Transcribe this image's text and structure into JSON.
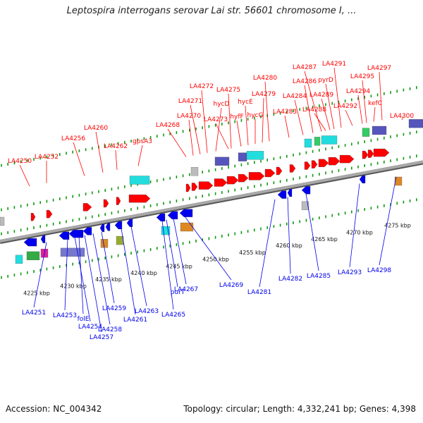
{
  "header": {
    "title": "Leptospira interrogans serovar Lai str. 56601 chromosome I, ..."
  },
  "footer": {
    "accession": "Accession: NC_004342",
    "summary": "Topology: circular; Length: 4,332,241 bp; Genes: 4,398"
  },
  "colors": {
    "forward": "#ff0000",
    "reverse": "#0000ee",
    "backbone": "#888888",
    "tick": "#119911"
  },
  "scale": {
    "labels": [
      "4225 kbp",
      "4230 kbp",
      "4235 kbp",
      "4240 kbp",
      "4245 kbp",
      "4250 kbp",
      "4255 kbp",
      "4260 kbp",
      "4265 kbp",
      "4270 kbp",
      "4275 kbp"
    ]
  },
  "top_labels": [
    "LA4250",
    "LA4252",
    "LA4256",
    "LA4260",
    "LA4262",
    "gpsA3",
    "LA4268",
    "LA4270",
    "LA4271",
    "LA4272",
    "hycD",
    "LA4273",
    "LA4275",
    "hyfF",
    "hycE",
    "hycG",
    "LA4279",
    "LA4280",
    "LA4283",
    "LA4284",
    "LA4286",
    "LA4287",
    "LA4288",
    "LA4289",
    "pyrD",
    "LA4291",
    "LA4292",
    "LA4294",
    "LA4295",
    "kefC",
    "LA4297",
    "LA4300"
  ],
  "bottom_labels": [
    "LA4251",
    "LA4253",
    "LA4254",
    "folE",
    "LA4257",
    "LA4258",
    "LA4259",
    "LA4261",
    "LA4263",
    "LA4265",
    "purT",
    "LA4267",
    "LA4269",
    "LA4281",
    "LA4282",
    "LA4285",
    "LA4293",
    "LA4298"
  ]
}
